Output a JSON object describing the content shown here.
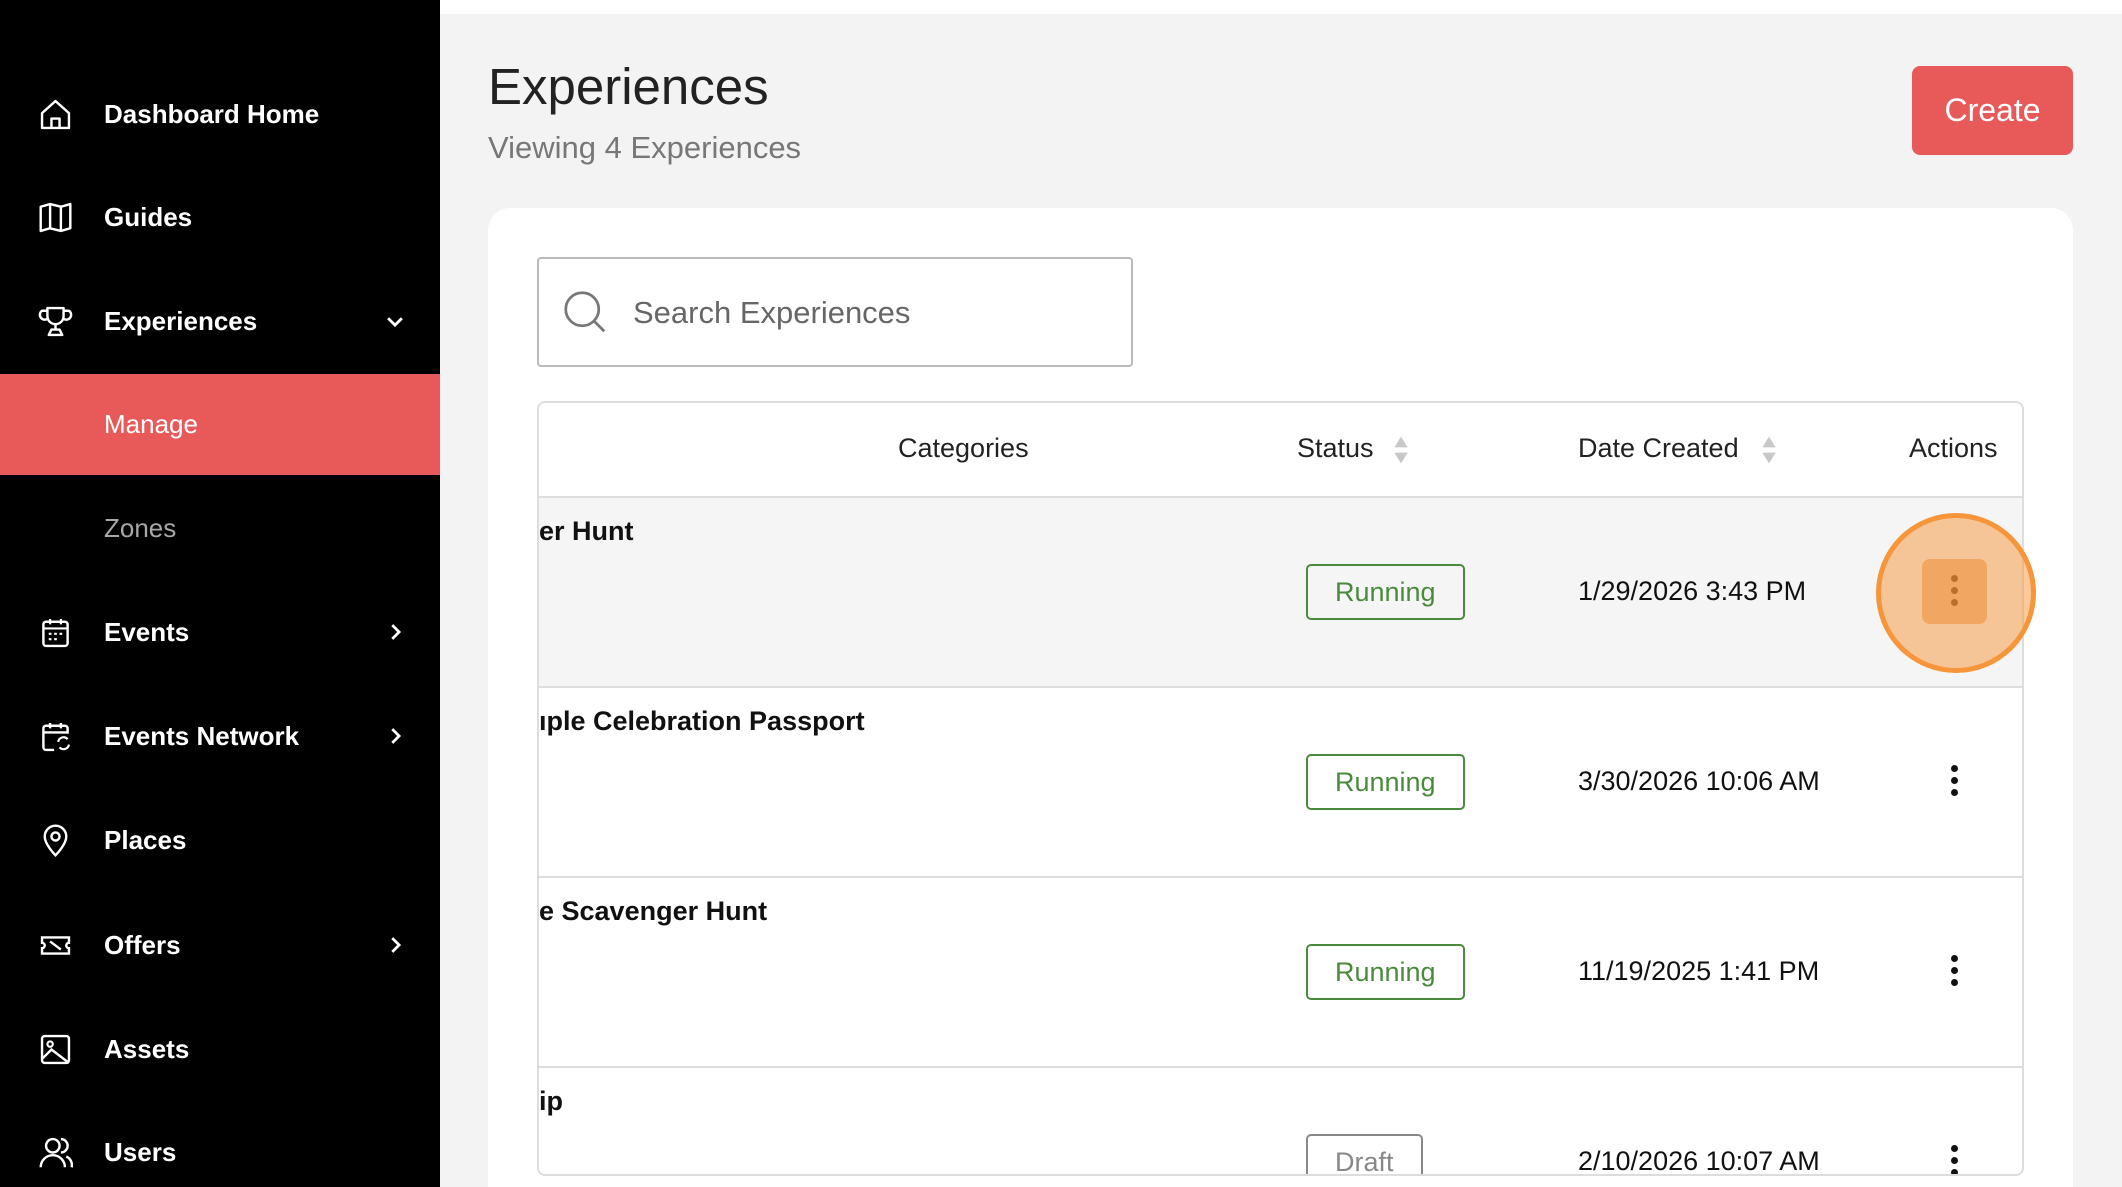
{
  "sidebar": {
    "items": [
      {
        "label": "Dashboard Home",
        "icon": "home-icon"
      },
      {
        "label": "Guides",
        "icon": "map-icon"
      },
      {
        "label": "Experiences",
        "icon": "trophy-icon",
        "expanded": true
      },
      {
        "label": "Manage",
        "active": true
      },
      {
        "label": "Zones"
      },
      {
        "label": "Events",
        "icon": "calendar-icon"
      },
      {
        "label": "Events Network",
        "icon": "calendar-sync-icon"
      },
      {
        "label": "Places",
        "icon": "map-pin-icon"
      },
      {
        "label": "Offers",
        "icon": "ticket-icon"
      },
      {
        "label": "Assets",
        "icon": "image-icon"
      },
      {
        "label": "Users",
        "icon": "users-icon"
      }
    ]
  },
  "header": {
    "title": "Experiences",
    "subtitle": "Viewing 4 Experiences",
    "create_label": "Create"
  },
  "search": {
    "placeholder": "Search Experiences",
    "value": ""
  },
  "table": {
    "columns": {
      "categories": "Categories",
      "status": "Status",
      "date_created": "Date Created",
      "actions": "Actions"
    },
    "rows": [
      {
        "name": "er Hunt",
        "status": "Running",
        "date": "1/29/2026 3:43 PM"
      },
      {
        "name": "ıple Celebration Passport",
        "status": "Running",
        "date": "3/30/2026 10:06 AM"
      },
      {
        "name": "e Scavenger Hunt",
        "status": "Running",
        "date": "11/19/2025 1:41 PM"
      },
      {
        "name": "ip",
        "status": "Draft",
        "date": "2/10/2026 10:07 AM"
      }
    ]
  },
  "colors": {
    "accent": "#e85a5a",
    "running": "#4a8a3c",
    "draft": "#888888",
    "highlight": "#f7953a"
  }
}
